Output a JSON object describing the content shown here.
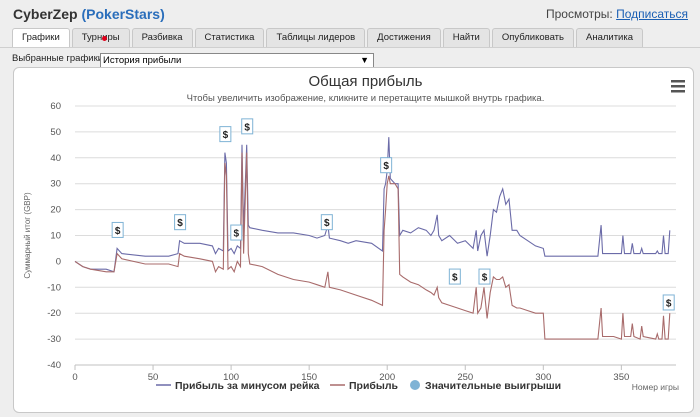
{
  "header": {
    "user": "CyberZep",
    "site": "PokerStars",
    "views_label": "Просмотры:",
    "subscribe_label": "Подписаться"
  },
  "tabs": [
    {
      "label": "Графики",
      "active": true
    },
    {
      "label": "Турниры"
    },
    {
      "label": "Разбивка"
    },
    {
      "label": "Статистика"
    },
    {
      "label": "Таблицы лидеров"
    },
    {
      "label": "Достижения"
    },
    {
      "label": "Найти"
    },
    {
      "label": "Опубликовать"
    },
    {
      "label": "Аналитика"
    }
  ],
  "selector": {
    "label": "Выбранные графики:",
    "value": "История прибыли"
  },
  "chart_data": {
    "type": "line",
    "title": "Общая прибыль",
    "subtitle": "Чтобы увеличить изображение, кликните и перетащите мышкой внутрь графика.",
    "xlabel": "Номер игры",
    "ylabel": "Суммарный итог (GBP)",
    "xlim": [
      0,
      385
    ],
    "ylim": [
      -40,
      60
    ],
    "xticks": [
      0,
      50,
      100,
      150,
      200,
      250,
      300,
      350
    ],
    "yticks": [
      -40,
      -30,
      -20,
      -10,
      0,
      10,
      20,
      30,
      40,
      50,
      60
    ],
    "grid": true,
    "legend_position": "bottom",
    "big_win_marker": "$",
    "series": [
      {
        "name": "Прибыль за минусом рейка",
        "color": "#6b6ba8",
        "points": [
          [
            0,
            0
          ],
          [
            5,
            -2
          ],
          [
            10,
            -3
          ],
          [
            20,
            -3
          ],
          [
            25,
            -4
          ],
          [
            27,
            5
          ],
          [
            30,
            3
          ],
          [
            45,
            2
          ],
          [
            60,
            2
          ],
          [
            66,
            3
          ],
          [
            67,
            8
          ],
          [
            70,
            7
          ],
          [
            80,
            7
          ],
          [
            88,
            6
          ],
          [
            90,
            3
          ],
          [
            92,
            5
          ],
          [
            95,
            4
          ],
          [
            96,
            42
          ],
          [
            97,
            38
          ],
          [
            98,
            4
          ],
          [
            100,
            5
          ],
          [
            102,
            3
          ],
          [
            104,
            6
          ],
          [
            106,
            5
          ],
          [
            107,
            45
          ],
          [
            108,
            12
          ],
          [
            110,
            45
          ],
          [
            111,
            14
          ],
          [
            112,
            13
          ],
          [
            120,
            12
          ],
          [
            130,
            11
          ],
          [
            140,
            11
          ],
          [
            150,
            10
          ],
          [
            155,
            9
          ],
          [
            160,
            10
          ],
          [
            162,
            14
          ],
          [
            163,
            9
          ],
          [
            170,
            8
          ],
          [
            175,
            7
          ],
          [
            180,
            8
          ],
          [
            190,
            7
          ],
          [
            197,
            4
          ],
          [
            198,
            28
          ],
          [
            199,
            30
          ],
          [
            200,
            35
          ],
          [
            201,
            48
          ],
          [
            202,
            32
          ],
          [
            205,
            30
          ],
          [
            207,
            30
          ],
          [
            208,
            10
          ],
          [
            210,
            12
          ],
          [
            215,
            11
          ],
          [
            220,
            13
          ],
          [
            225,
            12
          ],
          [
            228,
            10
          ],
          [
            230,
            12
          ],
          [
            232,
            18
          ],
          [
            233,
            10
          ],
          [
            235,
            8
          ],
          [
            240,
            10
          ],
          [
            245,
            7
          ],
          [
            250,
            8
          ],
          [
            255,
            5
          ],
          [
            257,
            12
          ],
          [
            258,
            4
          ],
          [
            260,
            10
          ],
          [
            262,
            12
          ],
          [
            264,
            2
          ],
          [
            266,
            10
          ],
          [
            268,
            20
          ],
          [
            270,
            19
          ],
          [
            272,
            25
          ],
          [
            274,
            28
          ],
          [
            276,
            22
          ],
          [
            278,
            24
          ],
          [
            280,
            12
          ],
          [
            283,
            12
          ],
          [
            285,
            10
          ],
          [
            290,
            8
          ],
          [
            295,
            6
          ],
          [
            300,
            5
          ],
          [
            301,
            2
          ],
          [
            310,
            2
          ],
          [
            320,
            2
          ],
          [
            335,
            2
          ],
          [
            337,
            14
          ],
          [
            338,
            3
          ],
          [
            345,
            3
          ],
          [
            350,
            3
          ],
          [
            351,
            10
          ],
          [
            352,
            3
          ],
          [
            356,
            3
          ],
          [
            357,
            7
          ],
          [
            358,
            3
          ],
          [
            362,
            3
          ],
          [
            363,
            5
          ],
          [
            364,
            3
          ],
          [
            372,
            3
          ],
          [
            373,
            4
          ],
          [
            374,
            3
          ],
          [
            376,
            3
          ],
          [
            377,
            10
          ],
          [
            378,
            3
          ],
          [
            380,
            3
          ],
          [
            381,
            12
          ]
        ]
      },
      {
        "name": "Прибыль",
        "color": "#a86b6b",
        "points": [
          [
            0,
            0
          ],
          [
            5,
            -2
          ],
          [
            10,
            -3
          ],
          [
            20,
            -4
          ],
          [
            25,
            -4
          ],
          [
            27,
            3
          ],
          [
            30,
            1
          ],
          [
            45,
            -1
          ],
          [
            60,
            -1
          ],
          [
            66,
            -2
          ],
          [
            67,
            3
          ],
          [
            70,
            2
          ],
          [
            80,
            1
          ],
          [
            88,
            0
          ],
          [
            90,
            -4
          ],
          [
            92,
            -2
          ],
          [
            95,
            -3
          ],
          [
            96,
            38
          ],
          [
            97,
            33
          ],
          [
            98,
            -3
          ],
          [
            100,
            -2
          ],
          [
            102,
            -4
          ],
          [
            104,
            0
          ],
          [
            106,
            -2
          ],
          [
            107,
            42
          ],
          [
            108,
            3
          ],
          [
            110,
            42
          ],
          [
            111,
            3
          ],
          [
            112,
            -1
          ],
          [
            120,
            -2
          ],
          [
            130,
            -5
          ],
          [
            140,
            -7
          ],
          [
            150,
            -8
          ],
          [
            155,
            -9
          ],
          [
            160,
            -10
          ],
          [
            162,
            -4
          ],
          [
            163,
            -10
          ],
          [
            170,
            -11
          ],
          [
            175,
            -12
          ],
          [
            180,
            -13
          ],
          [
            190,
            -15
          ],
          [
            197,
            -17
          ],
          [
            198,
            12
          ],
          [
            199,
            20
          ],
          [
            200,
            30
          ],
          [
            201,
            33
          ],
          [
            202,
            30
          ],
          [
            205,
            30
          ],
          [
            207,
            28
          ],
          [
            208,
            -5
          ],
          [
            210,
            -6
          ],
          [
            215,
            -8
          ],
          [
            220,
            -9
          ],
          [
            225,
            -11
          ],
          [
            228,
            -12
          ],
          [
            230,
            -13
          ],
          [
            232,
            -10
          ],
          [
            233,
            -14
          ],
          [
            235,
            -16
          ],
          [
            240,
            -17
          ],
          [
            245,
            -18
          ],
          [
            250,
            -19
          ],
          [
            255,
            -20
          ],
          [
            257,
            -10
          ],
          [
            258,
            -20
          ],
          [
            260,
            -18
          ],
          [
            262,
            -10
          ],
          [
            264,
            -22
          ],
          [
            266,
            -12
          ],
          [
            268,
            -6
          ],
          [
            270,
            -7
          ],
          [
            272,
            -7
          ],
          [
            274,
            -6
          ],
          [
            276,
            -10
          ],
          [
            278,
            -9
          ],
          [
            280,
            -17
          ],
          [
            283,
            -18
          ],
          [
            285,
            -18
          ],
          [
            290,
            -19
          ],
          [
            295,
            -20
          ],
          [
            300,
            -20
          ],
          [
            301,
            -30
          ],
          [
            310,
            -30
          ],
          [
            320,
            -30
          ],
          [
            335,
            -30
          ],
          [
            337,
            -18
          ],
          [
            338,
            -29
          ],
          [
            345,
            -29
          ],
          [
            350,
            -30
          ],
          [
            351,
            -20
          ],
          [
            352,
            -29
          ],
          [
            356,
            -29
          ],
          [
            357,
            -24
          ],
          [
            358,
            -29
          ],
          [
            362,
            -30
          ],
          [
            363,
            -25
          ],
          [
            364,
            -29
          ],
          [
            372,
            -30
          ],
          [
            373,
            -28
          ],
          [
            374,
            -30
          ],
          [
            376,
            -30
          ],
          [
            377,
            -21
          ],
          [
            378,
            -30
          ],
          [
            380,
            -30
          ],
          [
            381,
            -20
          ]
        ]
      },
      {
        "name": "Значительные выигрыши",
        "color": "#7fb3d5",
        "points": [
          [
            27,
            5
          ],
          [
            67,
            8
          ],
          [
            96,
            42
          ],
          [
            103,
            4
          ],
          [
            110,
            45
          ],
          [
            161,
            8
          ],
          [
            199,
            30
          ],
          [
            243,
            -13
          ],
          [
            262,
            -13
          ],
          [
            380,
            -23
          ]
        ]
      }
    ]
  }
}
